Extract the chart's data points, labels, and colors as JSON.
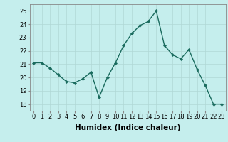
{
  "x": [
    0,
    1,
    2,
    3,
    4,
    5,
    6,
    7,
    8,
    9,
    10,
    11,
    12,
    13,
    14,
    15,
    16,
    17,
    18,
    19,
    20,
    21,
    22,
    23
  ],
  "y": [
    21.1,
    21.1,
    20.7,
    20.2,
    19.7,
    19.6,
    19.9,
    20.4,
    18.5,
    20.0,
    21.1,
    22.4,
    23.3,
    23.9,
    24.2,
    25.0,
    22.4,
    21.7,
    21.4,
    22.1,
    20.6,
    19.4,
    18.0,
    18.0
  ],
  "line_color": "#1a6b5e",
  "marker": "D",
  "marker_size": 2.2,
  "bg_color": "#c5eeed",
  "grid_color": "#b0d8d5",
  "xlabel": "Humidex (Indice chaleur)",
  "xlim": [
    -0.5,
    23.5
  ],
  "ylim": [
    17.5,
    25.5
  ],
  "yticks": [
    18,
    19,
    20,
    21,
    22,
    23,
    24,
    25
  ],
  "xticks": [
    0,
    1,
    2,
    3,
    4,
    5,
    6,
    7,
    8,
    9,
    10,
    11,
    12,
    13,
    14,
    15,
    16,
    17,
    18,
    19,
    20,
    21,
    22,
    23
  ],
  "label_fontsize": 7.5,
  "tick_fontsize": 6.0,
  "line_width": 1.0
}
